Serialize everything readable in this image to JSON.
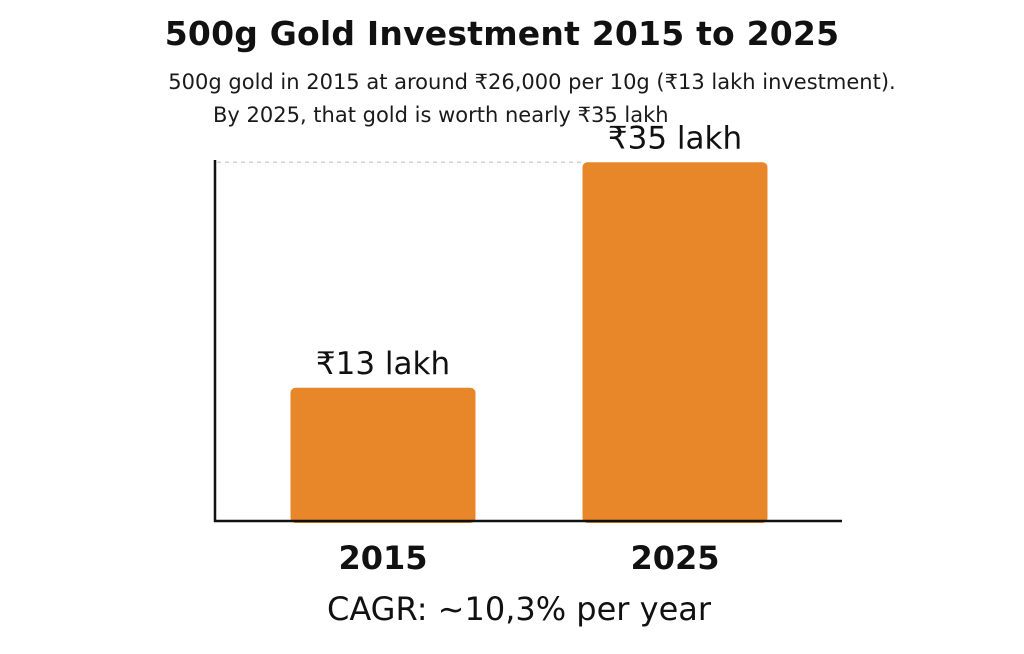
{
  "chart_data": {
    "type": "bar",
    "title": "500g Gold Investment 2015 to 2025",
    "subtitle_lines": [
      "500g gold in 2015 at around ₹26,000 per 10g (₹13 lakh investment).",
      "By 2025, that gold is worth nearly ₹35 lakh"
    ],
    "categories": [
      "2015",
      "2025"
    ],
    "values": [
      13,
      35
    ],
    "data_labels": [
      "₹13 lakh",
      "₹35 lakh"
    ],
    "unit": "lakh",
    "ylim": [
      0,
      40
    ],
    "reference_line_value": 35,
    "bar_color": "#E8862A",
    "annotation": "CAGR: ~10,3% per year",
    "xlabel": "",
    "ylabel": ""
  }
}
